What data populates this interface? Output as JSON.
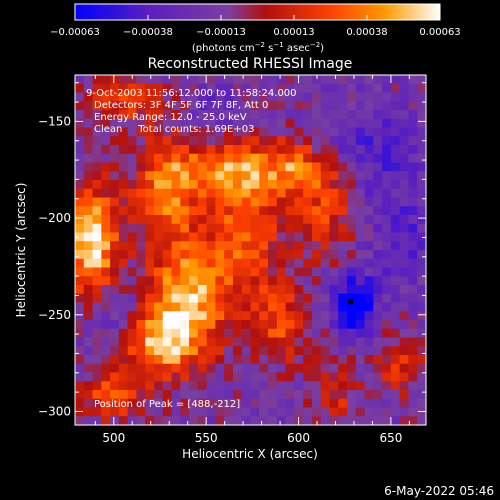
{
  "chart_data": {
    "type": "heatmap",
    "title": "Reconstructed RHESSI Image",
    "xlabel": "Heliocentric X (arcsec)",
    "ylabel": "Heliocentric Y (arcsec)",
    "xlim": [
      479,
      669
    ],
    "ylim": [
      -307,
      -126
    ],
    "x_ticks": [
      500,
      550,
      600,
      650
    ],
    "y_ticks": [
      -150,
      -200,
      -250,
      -300
    ],
    "colorbar": {
      "ticks": [
        "-0.00063",
        "-0.00038",
        "-0.00013",
        "0.00013",
        "0.00038",
        "0.00063"
      ],
      "range": [
        -0.00063,
        0.00063
      ],
      "unit_label": "(photons cm^-2 s^-1 asec^-2)",
      "colormap": [
        "#0000ff",
        "#5a1fbf",
        "#7a3fa0",
        "#b01010",
        "#ff4000",
        "#ff9a00",
        "#ffffff"
      ]
    },
    "annotations": [
      "9-Oct-2003 11:56:12.000 to 11:58:24.000",
      "Detectors: 3F 4F 5F 6F 7F 8F, Att 0",
      "Energy Range: 12.0 - 25.0 keV",
      "Clean     Total counts: 1.69E+03",
      "Position of Peak = [488,-212]"
    ],
    "footer_date": "6-May-2022 05:46",
    "sources": [
      {
        "x": 488,
        "y": -212,
        "sx": 10,
        "sy": 20,
        "amp": 1.0
      },
      {
        "x": 540,
        "y": -240,
        "sx": 14,
        "sy": 20,
        "amp": 0.85
      },
      {
        "x": 528,
        "y": -185,
        "sx": 12,
        "sy": 18,
        "amp": 0.7
      },
      {
        "x": 525,
        "y": -265,
        "sx": 14,
        "sy": 12,
        "amp": 0.75
      },
      {
        "x": 500,
        "y": -290,
        "sx": 12,
        "sy": 10,
        "amp": 0.55
      },
      {
        "x": 570,
        "y": -205,
        "sx": 14,
        "sy": 30,
        "amp": 0.55
      },
      {
        "x": 560,
        "y": -175,
        "sx": 20,
        "sy": 10,
        "amp": 0.5
      },
      {
        "x": 600,
        "y": -175,
        "sx": 14,
        "sy": 10,
        "amp": 0.6
      },
      {
        "x": 590,
        "y": -255,
        "sx": 12,
        "sy": 14,
        "amp": 0.45
      },
      {
        "x": 620,
        "y": -290,
        "sx": 10,
        "sy": 10,
        "amp": 0.35
      },
      {
        "x": 655,
        "y": -275,
        "sx": 10,
        "sy": 12,
        "amp": 0.35
      },
      {
        "x": 505,
        "y": -140,
        "sx": 18,
        "sy": 8,
        "amp": 0.45
      },
      {
        "x": 615,
        "y": -200,
        "sx": 12,
        "sy": 16,
        "amp": 0.45
      },
      {
        "x": 630,
        "y": -245,
        "sx": 8,
        "sy": 10,
        "amp": -0.9
      },
      {
        "x": 640,
        "y": -165,
        "sx": 18,
        "sy": 16,
        "amp": -0.3
      },
      {
        "x": 655,
        "y": -210,
        "sx": 16,
        "sy": 20,
        "amp": -0.25
      },
      {
        "x": 555,
        "y": -145,
        "sx": 12,
        "sy": 10,
        "amp": -0.25
      },
      {
        "x": 500,
        "y": -250,
        "sx": 8,
        "sy": 12,
        "amp": -0.25
      }
    ]
  }
}
